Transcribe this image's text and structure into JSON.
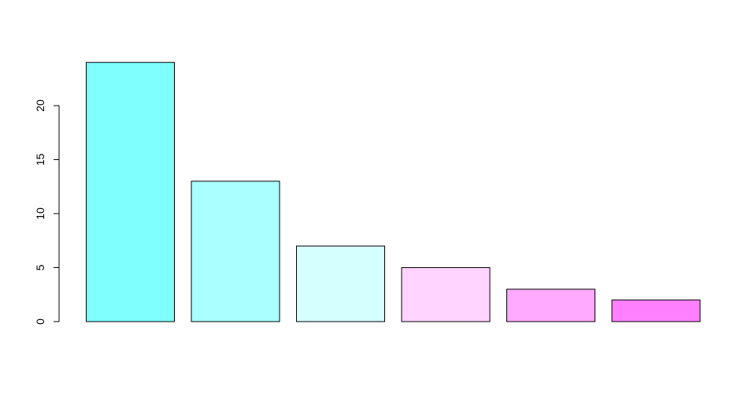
{
  "chart_data": {
    "type": "bar",
    "categories": [
      "",
      "",
      "",
      "",
      "",
      ""
    ],
    "values": [
      24,
      13,
      7,
      5,
      3,
      2
    ],
    "colors": [
      "#80ffff",
      "#aaffff",
      "#d5ffff",
      "#ffd5ff",
      "#ffaaff",
      "#ff80ff"
    ],
    "title": "",
    "xlabel": "",
    "ylabel": "",
    "ylim": [
      0,
      24
    ],
    "yticks": [
      0,
      5,
      10,
      15,
      20
    ],
    "ytick_labels": [
      "0",
      "5",
      "10",
      "15",
      "20"
    ],
    "grid": false,
    "legend": "none"
  }
}
